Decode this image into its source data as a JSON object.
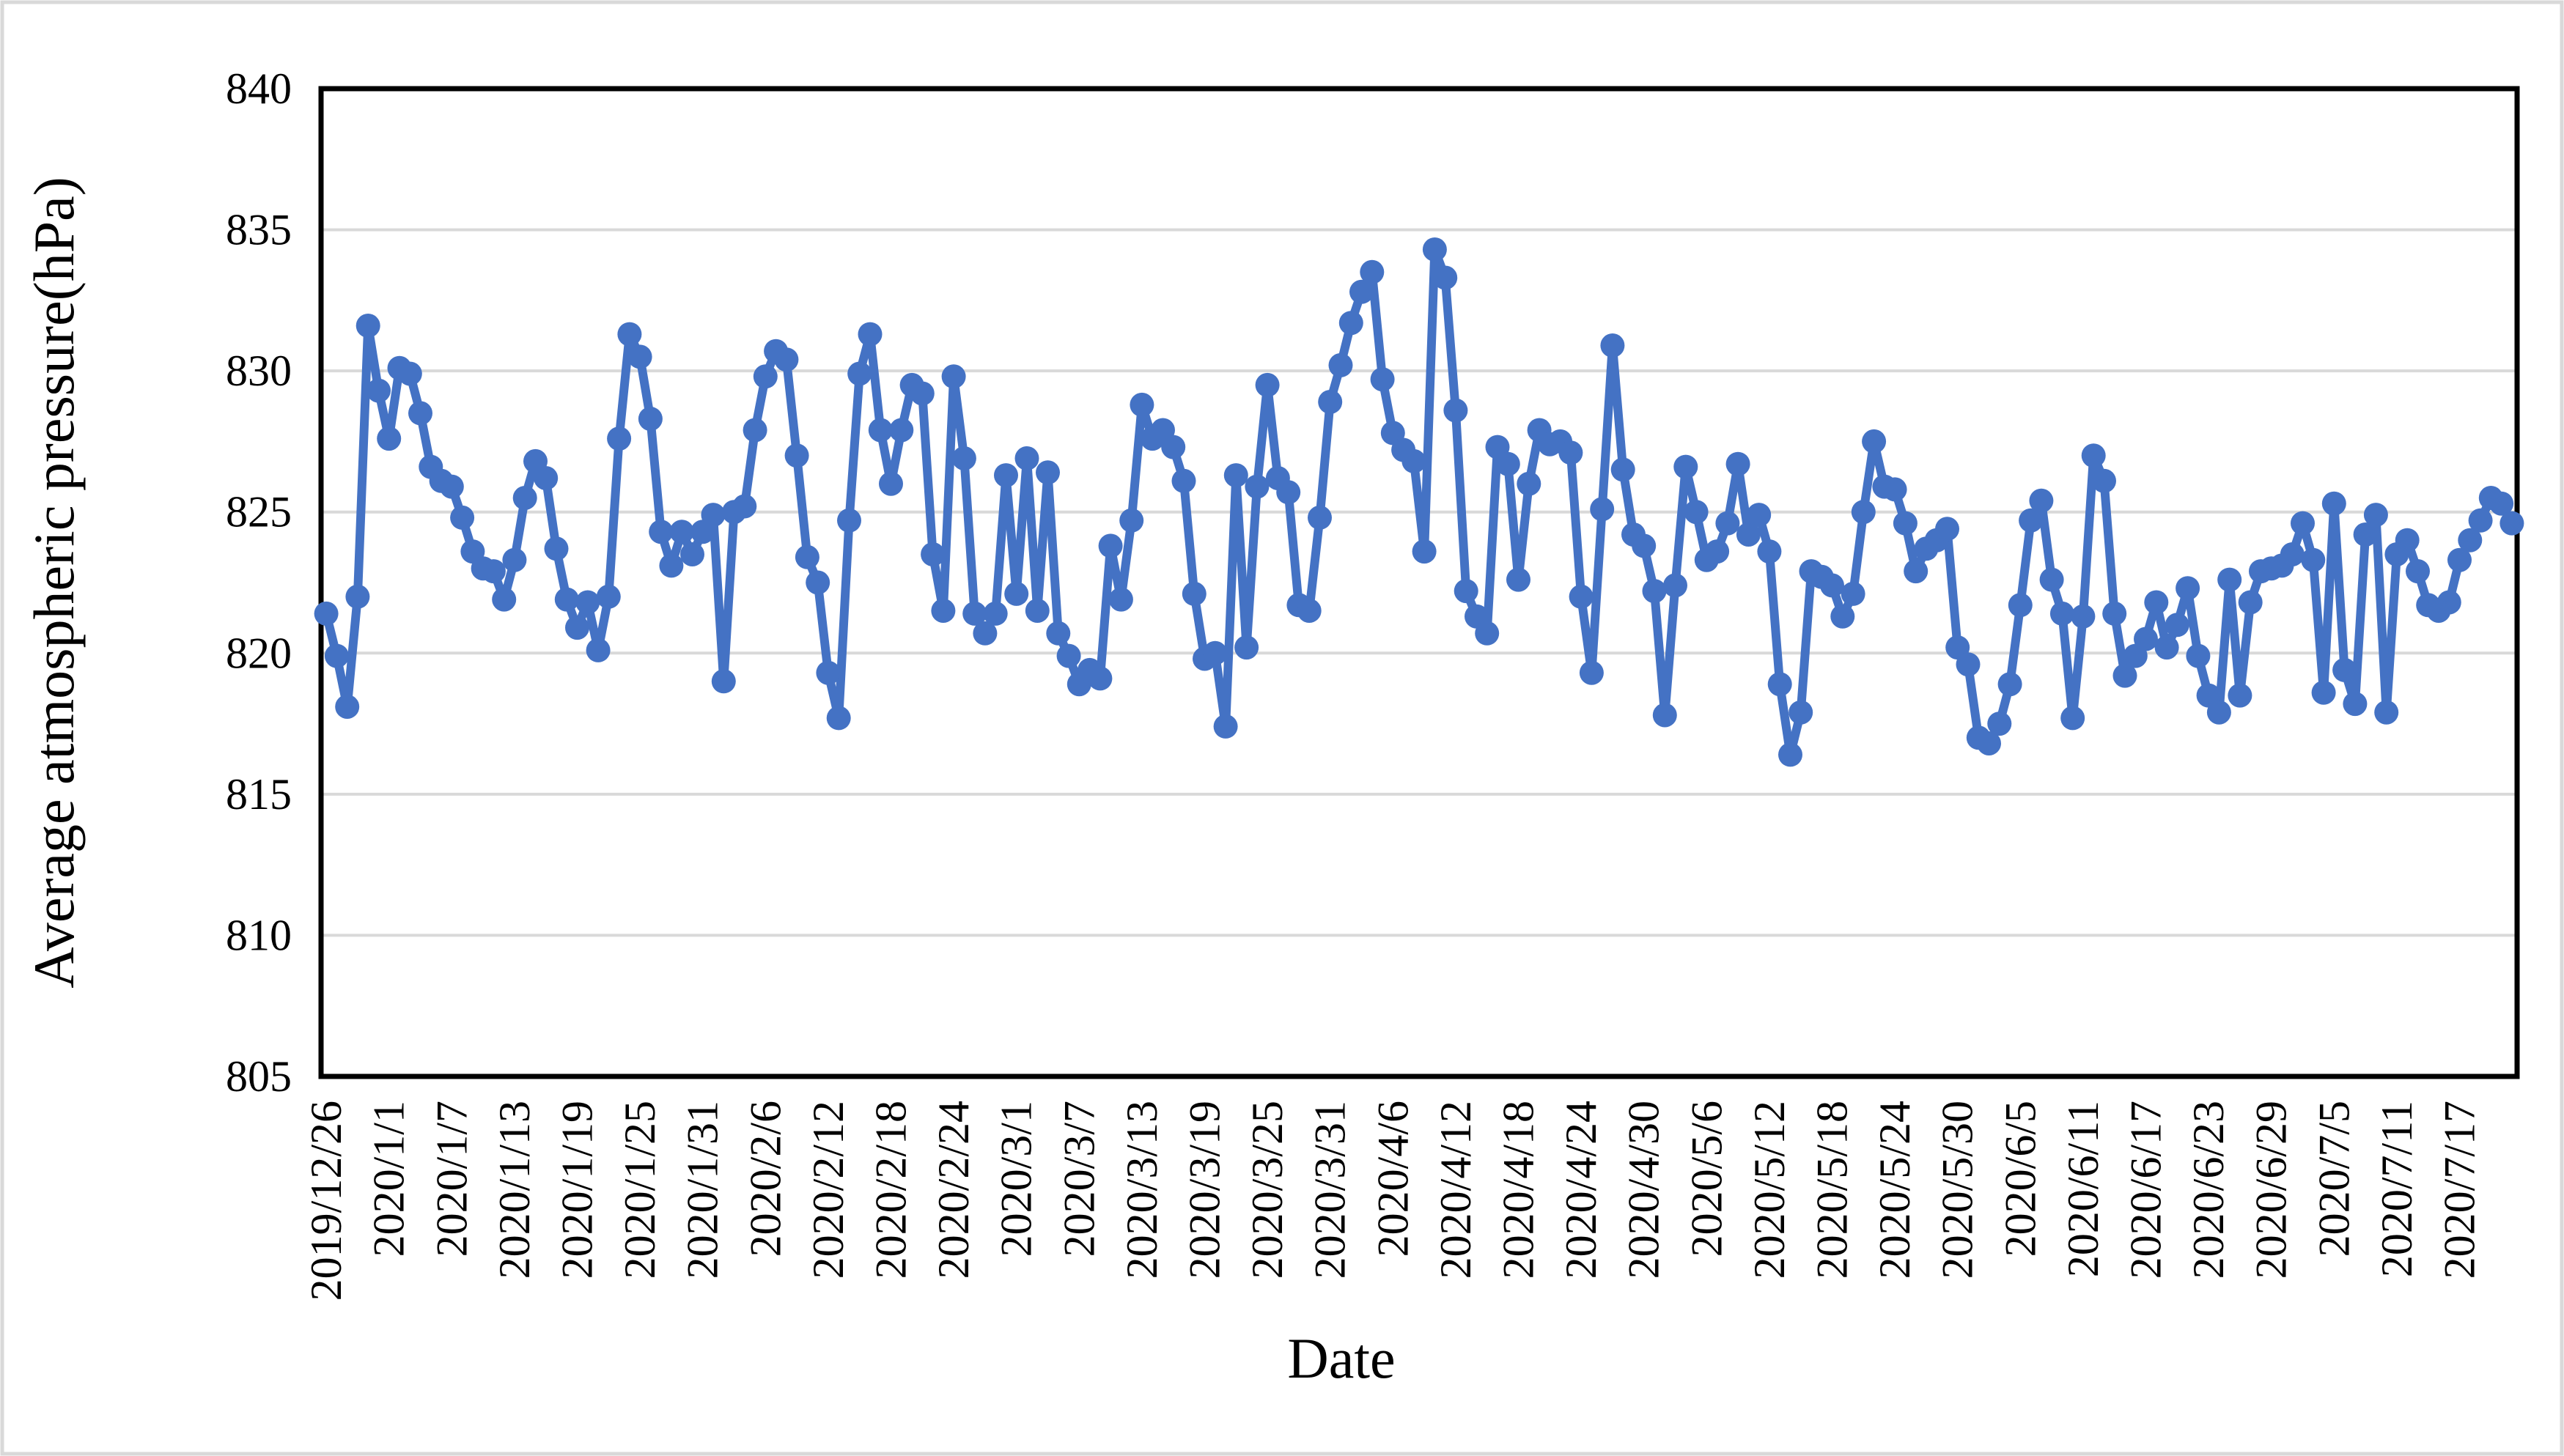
{
  "chart_data": {
    "type": "line",
    "title": "",
    "xlabel": "Date",
    "ylabel": "Average atmospheric pressure(hPa)",
    "x_start": "2019/12/26",
    "x_end": "2020/7/22",
    "n_points": 210,
    "x_tick_every": 6,
    "x_tick_labels": [
      "2019/12/26",
      "2020/1/1",
      "2020/1/7",
      "2020/1/13",
      "2020/1/19",
      "2020/1/25",
      "2020/1/31",
      "2020/2/6",
      "2020/2/12",
      "2020/2/18",
      "2020/2/24",
      "2020/3/1",
      "2020/3/7",
      "2020/3/13",
      "2020/3/19",
      "2020/3/25",
      "2020/3/31",
      "2020/4/6",
      "2020/4/12",
      "2020/4/18",
      "2020/4/24",
      "2020/4/30",
      "2020/5/6",
      "2020/5/12",
      "2020/5/18",
      "2020/5/24",
      "2020/5/30",
      "2020/6/5",
      "2020/6/11",
      "2020/6/17",
      "2020/6/23",
      "2020/6/29",
      "2020/7/5",
      "2020/7/11",
      "2020/7/17"
    ],
    "ylim": [
      805,
      840
    ],
    "ytick_step": 5,
    "y_tick_labels": [
      "805",
      "810",
      "815",
      "820",
      "825",
      "830",
      "835",
      "840"
    ],
    "grid": true,
    "legend": false,
    "values": [
      821.4,
      819.9,
      818.1,
      822.0,
      831.6,
      829.3,
      827.6,
      830.1,
      829.9,
      828.5,
      826.6,
      826.1,
      825.9,
      824.8,
      823.6,
      823.0,
      822.9,
      821.9,
      823.3,
      825.5,
      826.8,
      826.2,
      823.7,
      821.9,
      820.9,
      821.8,
      820.1,
      822.0,
      827.6,
      831.3,
      830.5,
      828.3,
      824.3,
      823.1,
      824.3,
      823.5,
      824.3,
      824.9,
      819.0,
      825.0,
      825.2,
      827.9,
      829.8,
      830.7,
      830.4,
      827.0,
      823.4,
      822.5,
      819.3,
      817.7,
      824.7,
      829.9,
      831.3,
      827.9,
      826.0,
      827.9,
      829.5,
      829.2,
      823.5,
      821.5,
      829.8,
      826.9,
      821.4,
      820.7,
      821.4,
      826.3,
      822.1,
      826.9,
      821.5,
      826.4,
      820.7,
      819.9,
      818.9,
      819.4,
      819.1,
      823.8,
      821.9,
      824.7,
      828.8,
      827.6,
      827.9,
      827.3,
      826.1,
      822.1,
      819.8,
      820.0,
      817.4,
      826.3,
      820.2,
      825.9,
      829.5,
      826.2,
      825.7,
      821.7,
      821.5,
      824.8,
      828.9,
      830.2,
      831.7,
      832.8,
      833.5,
      829.7,
      827.8,
      827.2,
      826.8,
      823.6,
      834.3,
      833.3,
      828.6,
      822.2,
      821.3,
      820.7,
      827.3,
      826.7,
      822.6,
      826.0,
      827.9,
      827.4,
      827.5,
      827.1,
      822.0,
      819.3,
      825.1,
      830.9,
      826.5,
      824.2,
      823.8,
      822.2,
      817.8,
      822.4,
      826.6,
      825.0,
      823.3,
      823.6,
      824.6,
      826.7,
      824.2,
      824.9,
      823.6,
      818.9,
      816.4,
      817.9,
      822.9,
      822.7,
      822.4,
      821.3,
      822.1,
      825.0,
      827.5,
      825.9,
      825.8,
      824.6,
      822.9,
      823.7,
      824.0,
      824.4,
      820.2,
      819.6,
      817.0,
      816.8,
      817.5,
      818.9,
      821.7,
      824.7,
      825.4,
      822.6,
      821.4,
      817.7,
      821.3,
      827.0,
      826.1,
      821.4,
      819.2,
      819.9,
      820.5,
      821.8,
      820.2,
      821.0,
      822.3,
      819.9,
      818.5,
      817.9,
      822.6,
      818.5,
      821.8,
      822.9,
      823.0,
      823.1,
      823.5,
      824.6,
      823.3,
      818.6,
      825.3,
      819.4,
      818.2,
      824.2,
      824.9,
      817.9,
      823.5,
      824.0,
      822.9,
      821.7,
      821.5,
      821.8,
      823.3,
      824.0,
      824.7,
      825.5,
      825.3,
      824.6
    ],
    "colors": {
      "series": "#4472C4",
      "gridline": "#D9D9D9",
      "axis": "#000000",
      "figure_border": "#D9D9D9",
      "background": "#FFFFFF"
    }
  }
}
